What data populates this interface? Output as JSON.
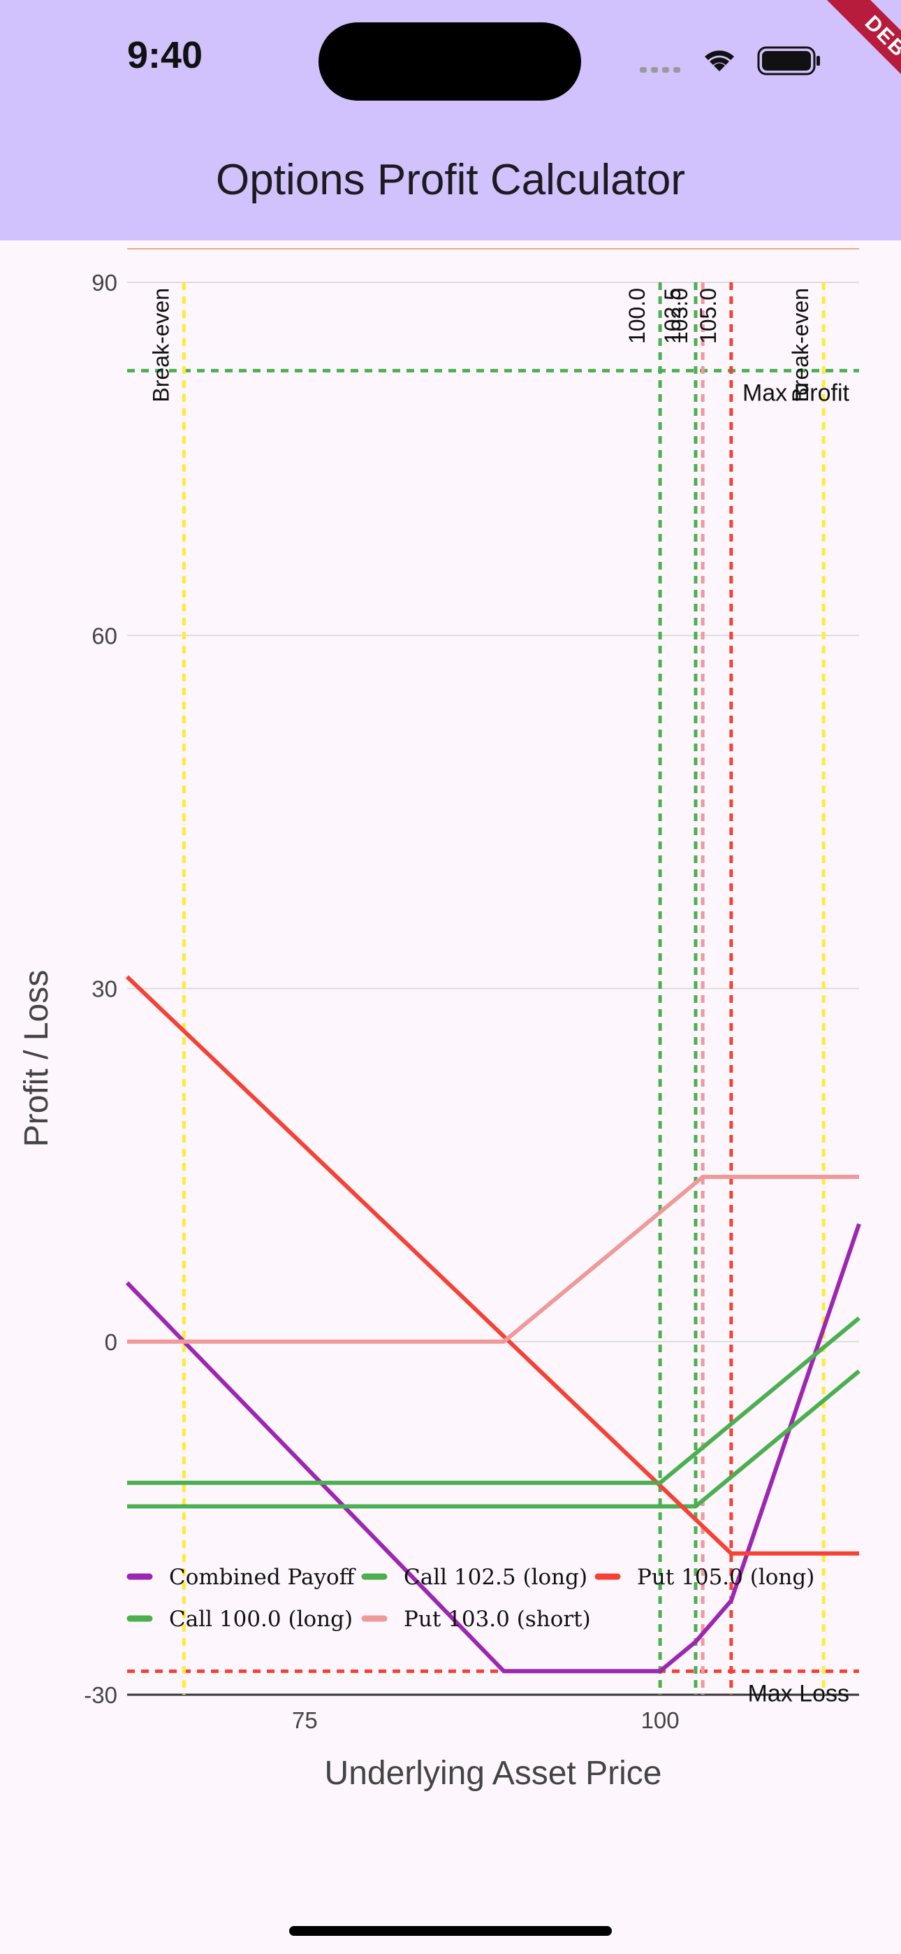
{
  "status_bar": {
    "time": "9:40"
  },
  "app_bar": {
    "title": "Options Profit Calculator"
  },
  "debug_banner": {
    "label": "DEBUG"
  },
  "colors": {
    "combined": "#9c27b0",
    "call": "#4caf50",
    "put_long": "#f44336",
    "put_short": "#ef9a9a",
    "break_even": "#ffeb3b",
    "app_bar": "#d1c1fc",
    "background": "#fdf7fd"
  },
  "chart_data": {
    "type": "line",
    "title": "",
    "xlabel": "Underlying Asset Price",
    "ylabel": "Profit / Loss",
    "xlim": [
      62.5,
      114
    ],
    "ylim": [
      -30,
      90
    ],
    "xticks": [
      75,
      100
    ],
    "yticks": [
      -30,
      0,
      30,
      60,
      90
    ],
    "grid": "horizontal",
    "legend_position": "bottom",
    "series": [
      {
        "name": "Combined Payoff",
        "color_key": "combined",
        "x": [
          62.5,
          66.5,
          89,
          100,
          102.5,
          105,
          114
        ],
        "y": [
          5,
          0,
          -28,
          -28,
          -25.5,
          -22,
          10
        ]
      },
      {
        "name": "Call 102.5 (long)",
        "color_key": "call",
        "x": [
          62.5,
          102.5,
          114
        ],
        "y": [
          -14,
          -14,
          -2.5
        ]
      },
      {
        "name": "Put 105.0 (long)",
        "color_key": "put_long",
        "x": [
          62.5,
          105,
          114
        ],
        "y": [
          31,
          -18,
          -18
        ]
      },
      {
        "name": "Call 100.0 (long)",
        "color_key": "call",
        "x": [
          62.5,
          100,
          114
        ],
        "y": [
          -12,
          -12,
          2
        ]
      },
      {
        "name": "Put 103.0 (short)",
        "color_key": "put_short",
        "x": [
          62.5,
          89,
          103,
          114
        ],
        "y": [
          0,
          0,
          14,
          14
        ]
      }
    ],
    "vertical_markers": [
      {
        "x": 66.5,
        "label": "Break-even",
        "color_key": "break_even"
      },
      {
        "x": 100.0,
        "label": "100.0",
        "color_key": "call"
      },
      {
        "x": 102.5,
        "label": "102.5",
        "color_key": "call"
      },
      {
        "x": 103.0,
        "label": "103.0",
        "color_key": "put_short"
      },
      {
        "x": 105.0,
        "label": "105.0",
        "color_key": "put_long"
      },
      {
        "x": 111.5,
        "label": "Break-even",
        "color_key": "break_even"
      }
    ],
    "horizontal_markers": [
      {
        "y": 82.5,
        "label": "Max Profit",
        "color_key": "call"
      },
      {
        "y": -28,
        "label": "Max Loss",
        "color_key": "put_long"
      }
    ]
  }
}
